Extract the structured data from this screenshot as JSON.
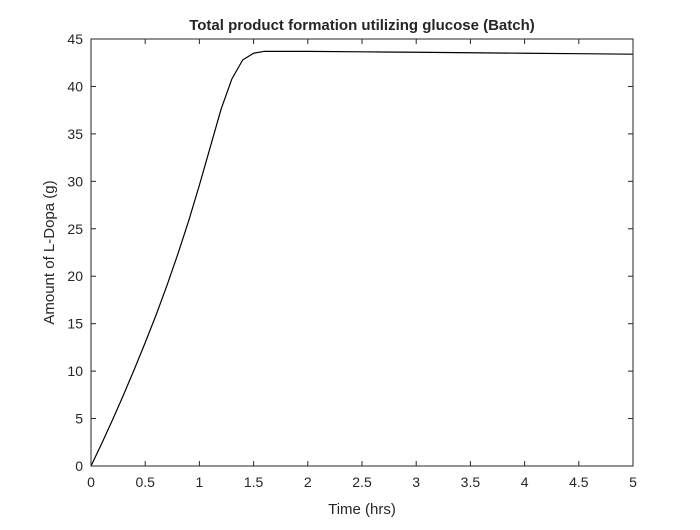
{
  "chart_data": {
    "type": "line",
    "title": "Total product formation utilizing glucose (Batch)",
    "xlabel": "Time (hrs)",
    "ylabel": "Amount of L-Dopa (g)",
    "xlim": [
      0,
      5
    ],
    "ylim": [
      0,
      45
    ],
    "xticks": [
      "0",
      "0.5",
      "1",
      "1.5",
      "2",
      "2.5",
      "3",
      "3.5",
      "4",
      "4.5",
      "5"
    ],
    "yticks": [
      "0",
      "5",
      "10",
      "15",
      "20",
      "25",
      "30",
      "35",
      "40",
      "45"
    ],
    "grid": false,
    "line_color": "#000000",
    "series": [
      {
        "x": [
          0,
          0.1,
          0.2,
          0.3,
          0.4,
          0.5,
          0.6,
          0.7,
          0.8,
          0.9,
          1.0,
          1.1,
          1.2,
          1.3,
          1.4,
          1.5,
          1.6,
          1.7,
          1.8,
          2.0,
          2.5,
          3.0,
          3.5,
          4.0,
          4.5,
          5.0
        ],
        "values": [
          0,
          2.4,
          4.9,
          7.5,
          10.2,
          13.0,
          15.9,
          19.0,
          22.3,
          25.8,
          29.6,
          33.6,
          37.6,
          40.8,
          42.8,
          43.5,
          43.7,
          43.7,
          43.7,
          43.7,
          43.65,
          43.6,
          43.55,
          43.5,
          43.45,
          43.4
        ]
      }
    ]
  }
}
